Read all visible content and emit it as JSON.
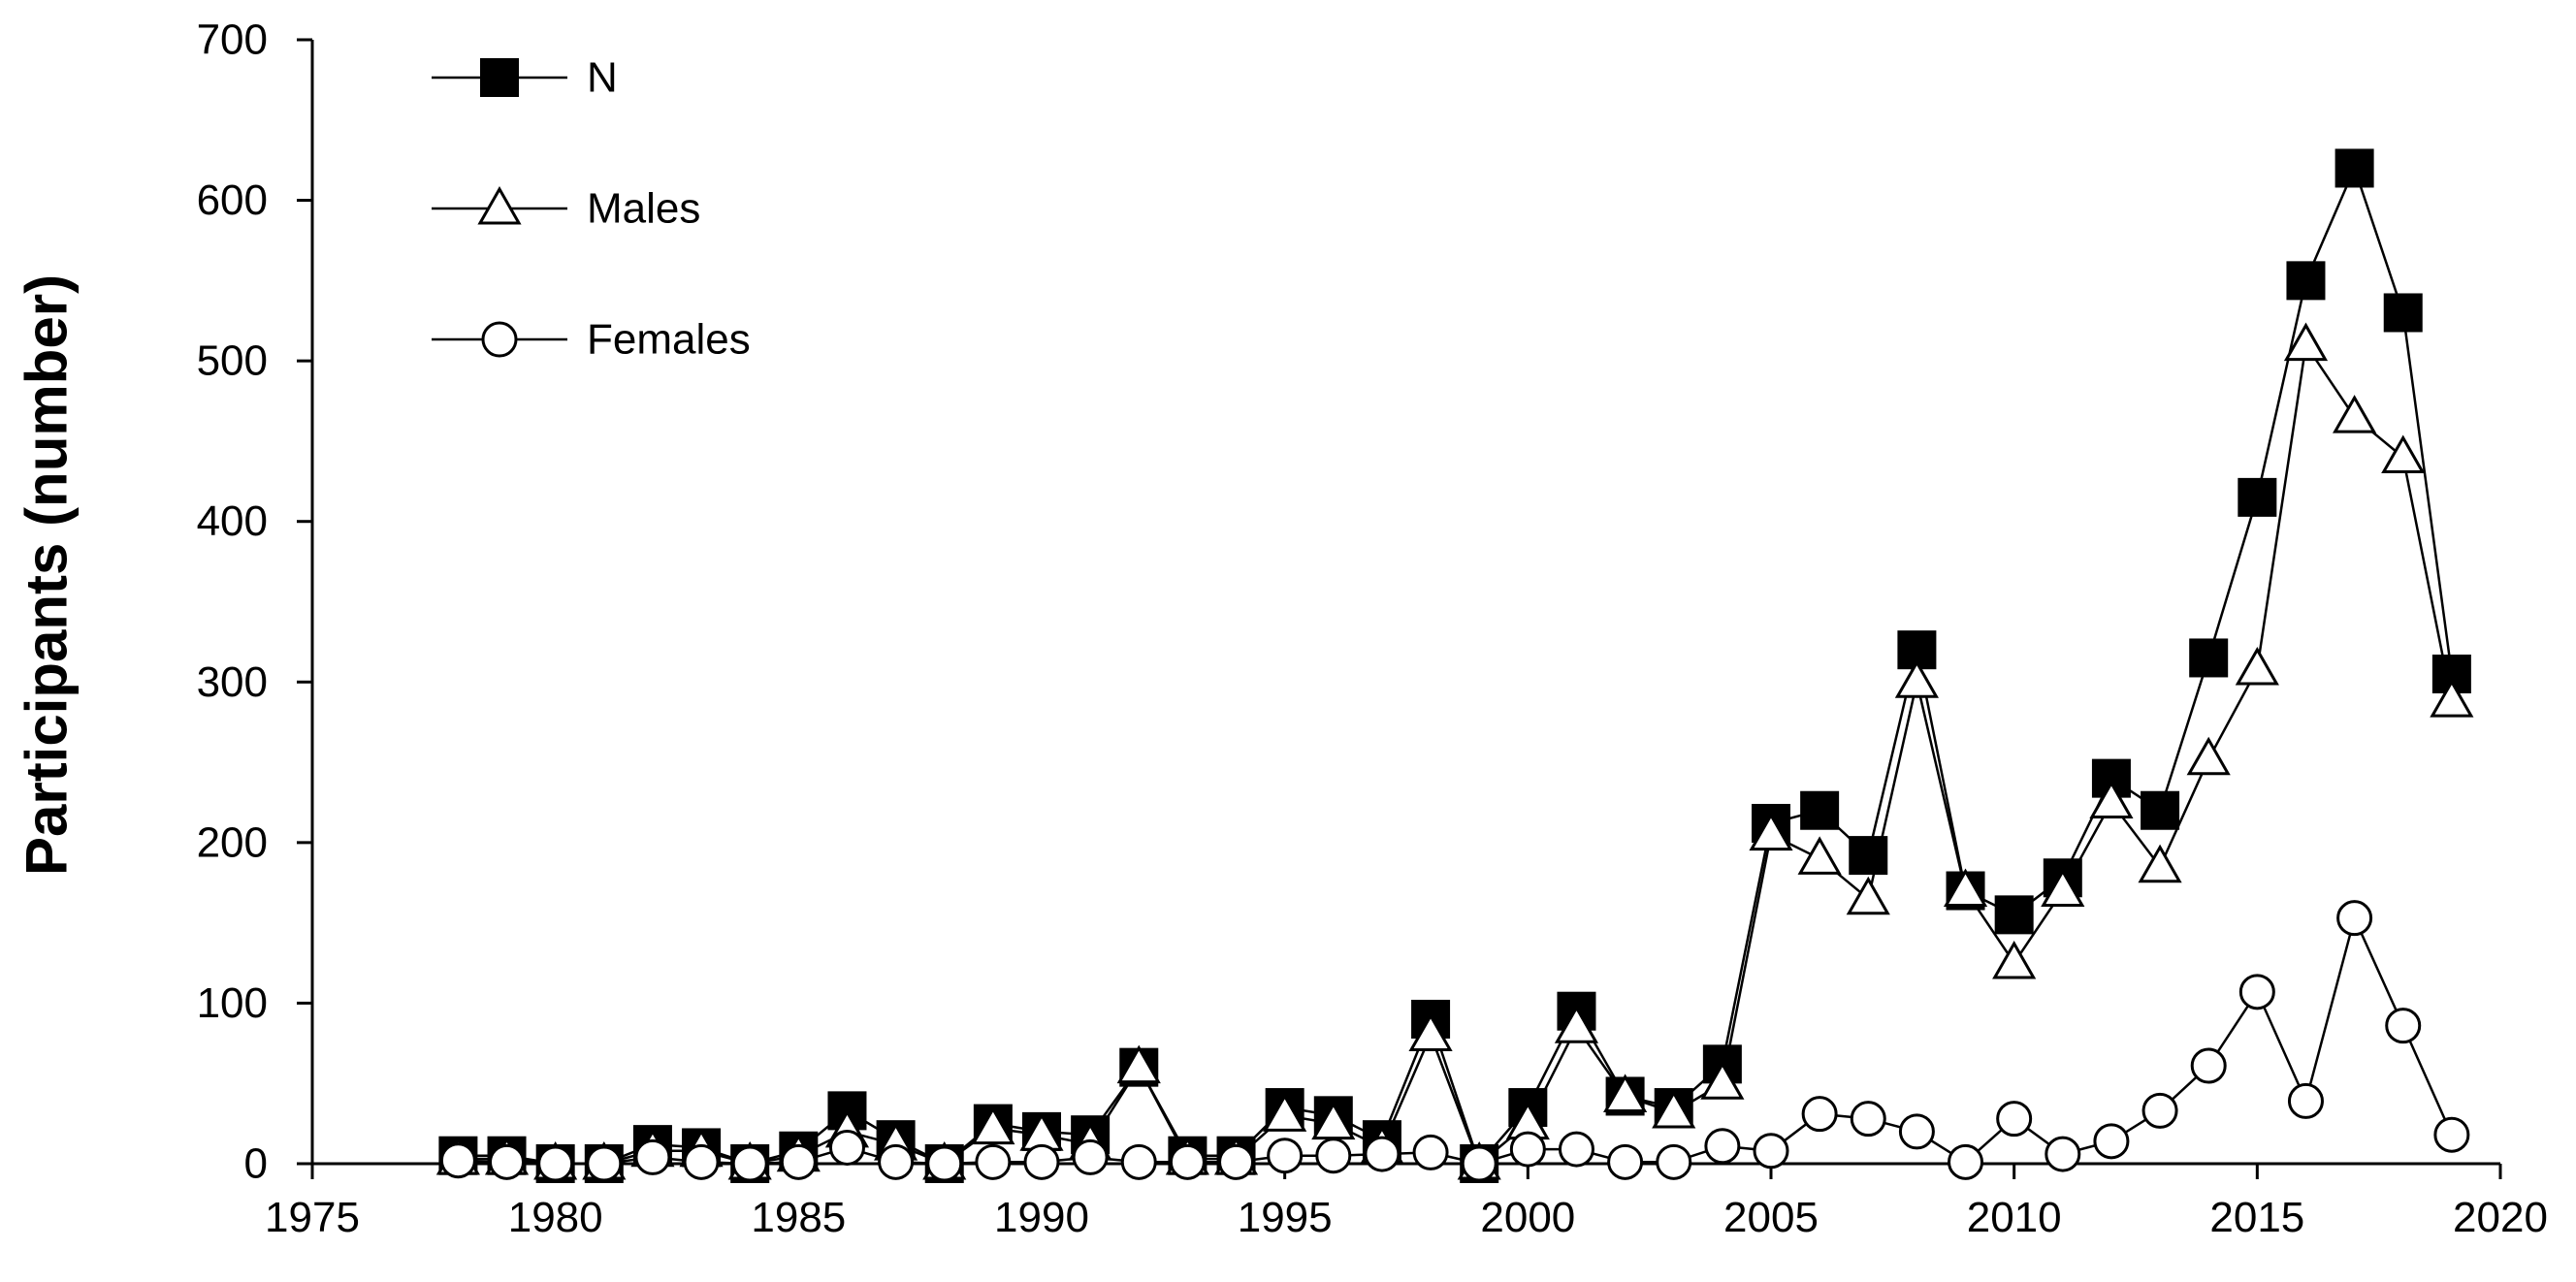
{
  "chart_data": {
    "type": "line",
    "title": "",
    "xlabel": "",
    "ylabel": "Participants (number)",
    "xlim": [
      1975,
      2020
    ],
    "ylim": [
      0,
      700
    ],
    "xticks": [
      1975,
      1980,
      1985,
      1990,
      1995,
      2000,
      2005,
      2010,
      2015,
      2020
    ],
    "yticks": [
      0,
      100,
      200,
      300,
      400,
      500,
      600,
      700
    ],
    "grid": false,
    "legend_position": "top-left",
    "x": [
      1978,
      1979,
      1980,
      1981,
      1982,
      1983,
      1984,
      1985,
      1986,
      1987,
      1988,
      1989,
      1990,
      1991,
      1992,
      1993,
      1994,
      1995,
      1996,
      1997,
      1998,
      1999,
      2000,
      2001,
      2002,
      2003,
      2004,
      2005,
      2006,
      2007,
      2008,
      2009,
      2010,
      2011,
      2012,
      2013,
      2014,
      2015,
      2016,
      2017,
      2018,
      2019
    ],
    "series": [
      {
        "name": "N",
        "marker": "filled-square",
        "color": "#000000",
        "values": [
          5,
          5,
          0,
          0,
          12,
          10,
          0,
          8,
          33,
          15,
          0,
          25,
          20,
          18,
          60,
          5,
          5,
          35,
          30,
          15,
          90,
          0,
          35,
          95,
          42,
          35,
          62,
          212,
          220,
          192,
          320,
          170,
          155,
          178,
          240,
          220,
          315,
          415,
          550,
          620,
          530,
          305
        ]
      },
      {
        "name": "Males",
        "marker": "open-triangle",
        "color": "#000000",
        "values": [
          3,
          3,
          0,
          0,
          8,
          8,
          0,
          5,
          20,
          12,
          0,
          22,
          18,
          12,
          60,
          3,
          3,
          30,
          25,
          10,
          80,
          0,
          25,
          85,
          42,
          32,
          50,
          205,
          190,
          165,
          300,
          170,
          125,
          170,
          225,
          185,
          252,
          308,
          510,
          465,
          440,
          288
        ]
      },
      {
        "name": "Females",
        "marker": "open-circle",
        "color": "#000000",
        "values": [
          2,
          1,
          0,
          0,
          4,
          1,
          0,
          1,
          10,
          1,
          0,
          1,
          1,
          4,
          1,
          1,
          1,
          5,
          5,
          6,
          7,
          0,
          9,
          9,
          1,
          1,
          11,
          8,
          31,
          28,
          20,
          1,
          28,
          6,
          14,
          33,
          61,
          107,
          39,
          153,
          86,
          18
        ]
      }
    ]
  }
}
